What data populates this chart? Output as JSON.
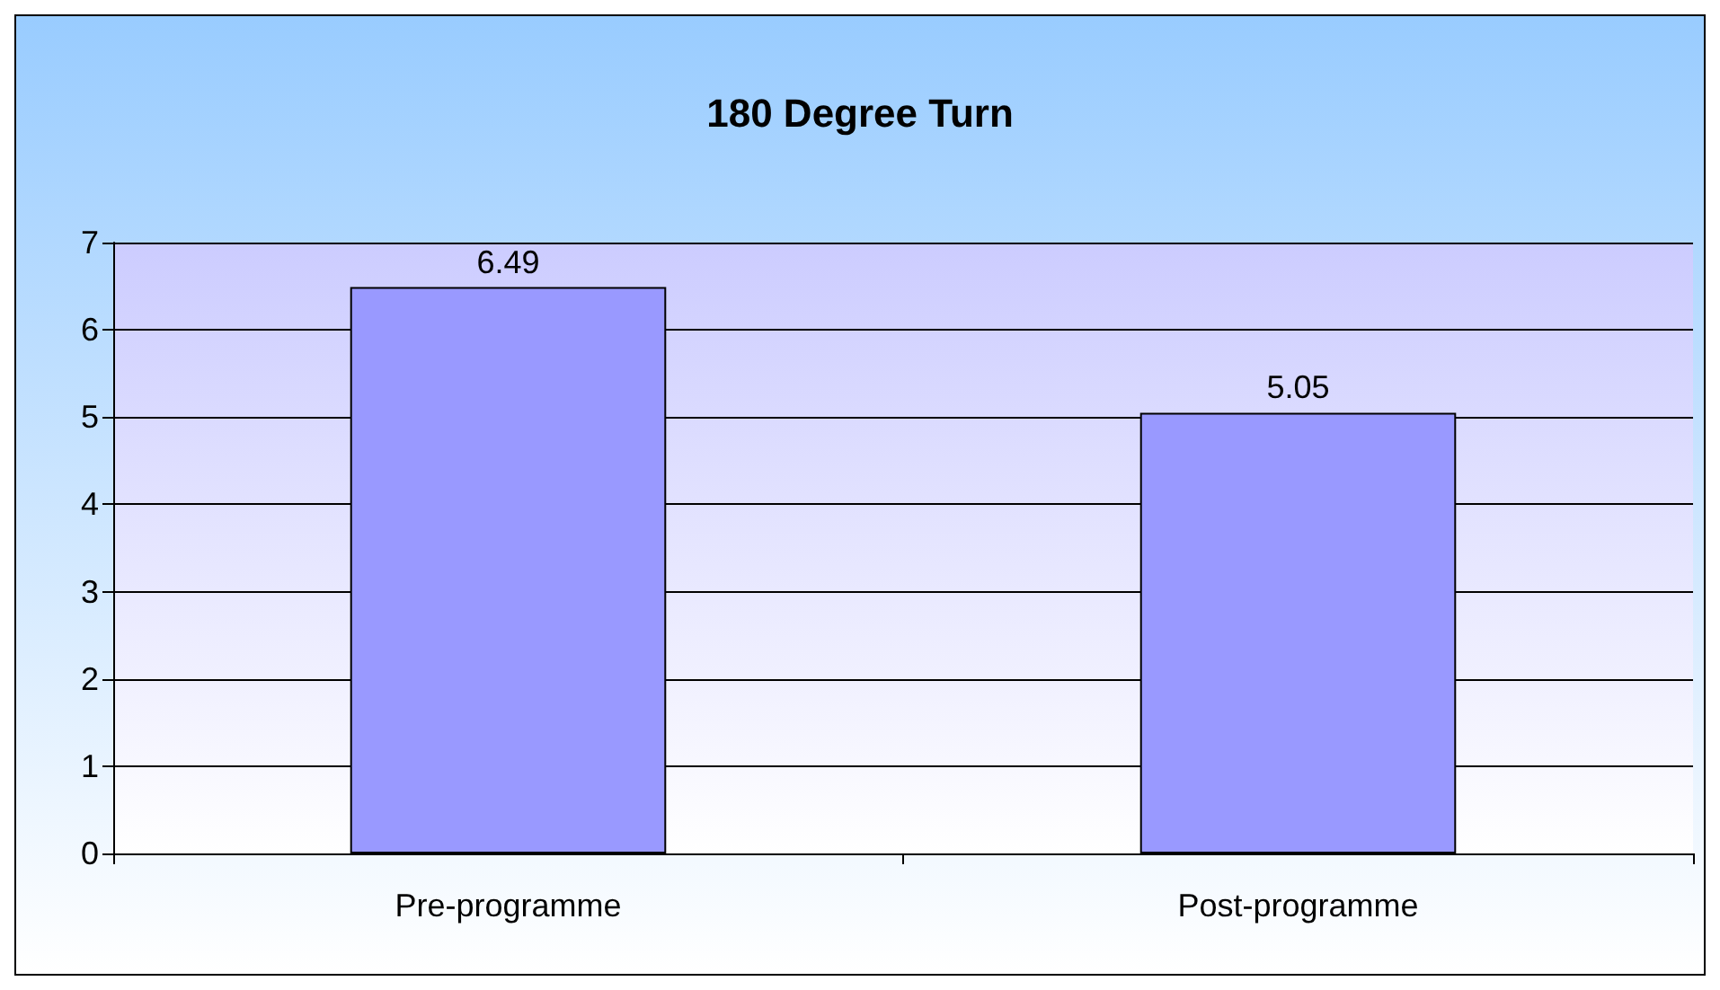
{
  "chart_data": {
    "type": "bar",
    "title": "180 Degree Turn",
    "categories": [
      "Pre-programme",
      "Post-programme"
    ],
    "values": [
      6.49,
      5.05
    ],
    "color": "#9999ff",
    "ylim": [
      0,
      7
    ],
    "yticks": [
      0,
      1,
      2,
      3,
      4,
      5,
      6,
      7
    ],
    "grid": "y",
    "data_labels": true
  }
}
